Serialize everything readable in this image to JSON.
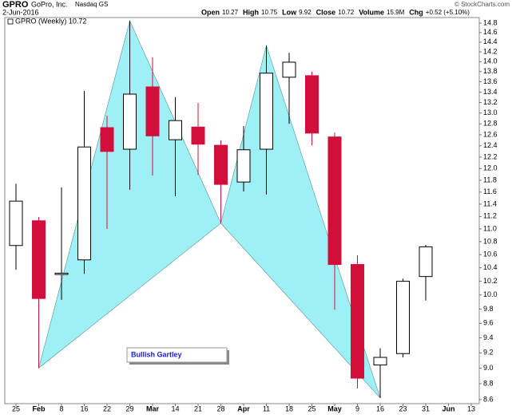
{
  "chart_data": {
    "type": "candlestick",
    "header": {
      "symbol": "GPRO",
      "name": "GoPro, Inc.",
      "exchange": "Nasdaq GS",
      "date": "2-Jun-2016",
      "stats": [
        {
          "label": "Open",
          "value": "10.27"
        },
        {
          "label": "High",
          "value": "10.75"
        },
        {
          "label": "Low",
          "value": "9.92"
        },
        {
          "label": "Close",
          "value": "10.72"
        },
        {
          "label": "Volume",
          "value": "15.9M"
        },
        {
          "label": "Chg",
          "value": "+0.52 (+5.10%)"
        }
      ],
      "credit": "© StockCharts.com"
    },
    "legend": "GPRO (Weekly) 10.72",
    "categories": [
      "25",
      "Feb",
      "8",
      "16",
      "22",
      "29",
      "Mar",
      "14",
      "21",
      "28",
      "Apr",
      "11",
      "18",
      "25",
      "May",
      "9",
      "16",
      "23",
      "31",
      "Jun",
      "13"
    ],
    "open": [
      10.74,
      11.13,
      10.3,
      10.52,
      12.73,
      12.34,
      13.5,
      12.51,
      12.74,
      12.41,
      11.77,
      12.34,
      13.69,
      13.72,
      12.56,
      10.45,
      9.04,
      9.19,
      10.27,
      null,
      null
    ],
    "high": [
      11.74,
      11.19,
      11.68,
      13.42,
      12.95,
      14.85,
      14.09,
      13.3,
      13.19,
      12.5,
      12.76,
      14.33,
      14.18,
      13.8,
      12.64,
      10.59,
      9.26,
      10.24,
      10.75,
      null,
      null
    ],
    "low": [
      10.37,
      9.0,
      9.93,
      10.31,
      11.0,
      11.64,
      11.88,
      11.53,
      11.89,
      11.09,
      11.61,
      11.56,
      12.8,
      12.41,
      9.79,
      8.74,
      8.62,
      9.14,
      9.92,
      null,
      null
    ],
    "close": [
      11.45,
      9.95,
      10.32,
      12.38,
      12.3,
      13.36,
      12.58,
      12.86,
      12.43,
      11.73,
      12.33,
      13.77,
      13.99,
      12.63,
      10.45,
      8.87,
      9.14,
      10.2,
      10.72,
      null,
      null
    ],
    "up_color": "#ffffff",
    "down_color": "#d10f3a",
    "log_scale": true,
    "ylim": [
      8.55,
      14.92
    ],
    "yticks": [
      8.6,
      8.8,
      {
        "value": 9,
        "label": "9.0"
      },
      9.2,
      9.4,
      9.6,
      9.8,
      {
        "value": 10,
        "label": "10.0"
      },
      10.2,
      10.4,
      10.6,
      10.8,
      {
        "value": 11,
        "label": "11.0"
      },
      11.2,
      11.4,
      11.6,
      11.8,
      {
        "value": 12,
        "label": "12.0"
      },
      12.2,
      12.4,
      12.6,
      12.8,
      {
        "value": 13,
        "label": "13.0"
      },
      13.2,
      13.4,
      13.6,
      13.8,
      {
        "value": 14,
        "label": "14.0"
      },
      14.2,
      14.4,
      14.6,
      14.8
    ],
    "pattern": {
      "label": "Bullish Gartley",
      "color": "#9ff0f4",
      "x": [
        1,
        5,
        9,
        11,
        16
      ],
      "values": [
        9.0,
        14.85,
        11.09,
        14.33,
        8.62
      ]
    }
  }
}
